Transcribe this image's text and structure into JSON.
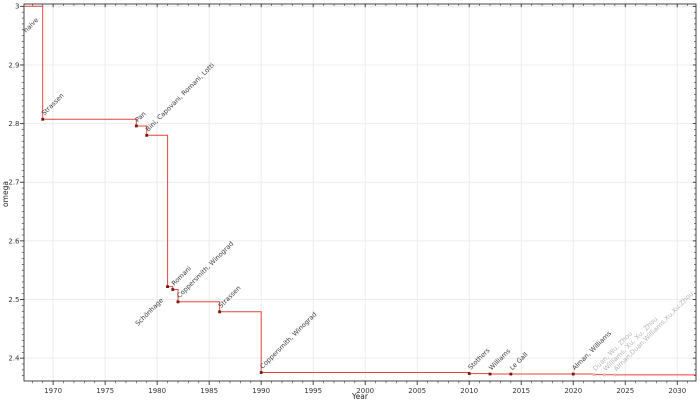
{
  "chart_data": {
    "type": "line",
    "style": "step-post",
    "title": "",
    "xlabel": "Year",
    "ylabel": "omega",
    "xlim": [
      1967.2,
      2031.8
    ],
    "ylim": [
      2.361,
      3.004
    ],
    "grid": "major-both",
    "legend": "none",
    "x_major_ticks": [
      1970,
      1975,
      1980,
      1985,
      1990,
      1995,
      2000,
      2005,
      2010,
      2015,
      2020,
      2025,
      2030
    ],
    "x_minor_step": 1,
    "y_major_ticks": [
      {
        "value": 3.0,
        "label": "3"
      },
      {
        "value": 2.9,
        "label": "2.9"
      },
      {
        "value": 2.8,
        "label": "2.8"
      },
      {
        "value": 2.7,
        "label": "2.7"
      },
      {
        "value": 2.6,
        "label": "2.6"
      },
      {
        "value": 2.5,
        "label": "2.5"
      },
      {
        "value": 2.4,
        "label": "2.4"
      }
    ],
    "y_minor_step": 0.01,
    "colors": {
      "line": "#e2453e",
      "marker": "#7a140e",
      "marker_muted": "#f0b4b0",
      "annotation": "#3c3c3c",
      "annotation_muted": "#b5b5b5",
      "axis": "#333333",
      "grid": "#ececec"
    },
    "series": [
      {
        "initial_value": 3.0,
        "initial_label": {
          "text": "naive",
          "side": "lower"
        },
        "points": [
          {
            "year": 1969,
            "omega": 2.8074,
            "label": "Strassen",
            "side": "upper"
          },
          {
            "year": 1978,
            "omega": 2.796,
            "label": "Pan",
            "side": "upper"
          },
          {
            "year": 1979,
            "omega": 2.78,
            "label": "Bini, Capovani, Romani, Lotti",
            "side": "upper"
          },
          {
            "year": 1981,
            "omega": 2.522,
            "label": "Schönhage",
            "side": "lower"
          },
          {
            "year": 1981.5,
            "omega": 2.517,
            "label": "Romani",
            "side": "upper"
          },
          {
            "year": 1982,
            "omega": 2.496,
            "label": "Coppersmith, Winograd",
            "side": "upper"
          },
          {
            "year": 1986,
            "omega": 2.479,
            "label": "Strassen",
            "side": "upper"
          },
          {
            "year": 1990,
            "omega": 2.3755,
            "label": "Coppersmith, Winograd",
            "side": "upper"
          },
          {
            "year": 2010,
            "omega": 2.3737,
            "label": "Stothers",
            "side": "upper"
          },
          {
            "year": 2012,
            "omega": 2.3729,
            "label": "Williams",
            "side": "upper"
          },
          {
            "year": 2014,
            "omega": 2.3728639,
            "label": "Le Gall",
            "side": "upper"
          },
          {
            "year": 2020,
            "omega": 2.3728596,
            "label": "Alman, Williams",
            "side": "upper"
          },
          {
            "year": 2022,
            "omega": 2.371866,
            "label": "Duan, Wu, Zhou",
            "side": "upper",
            "muted": true
          },
          {
            "year": 2023,
            "omega": 2.371552,
            "label": "Williams, Xu, Xu, Zhou",
            "side": "upper",
            "muted": true
          },
          {
            "year": 2024,
            "omega": 2.371339,
            "label": "Alman,Duan,Williams,Xu,Xu,Zhou",
            "side": "upper",
            "muted": true
          }
        ]
      }
    ]
  }
}
